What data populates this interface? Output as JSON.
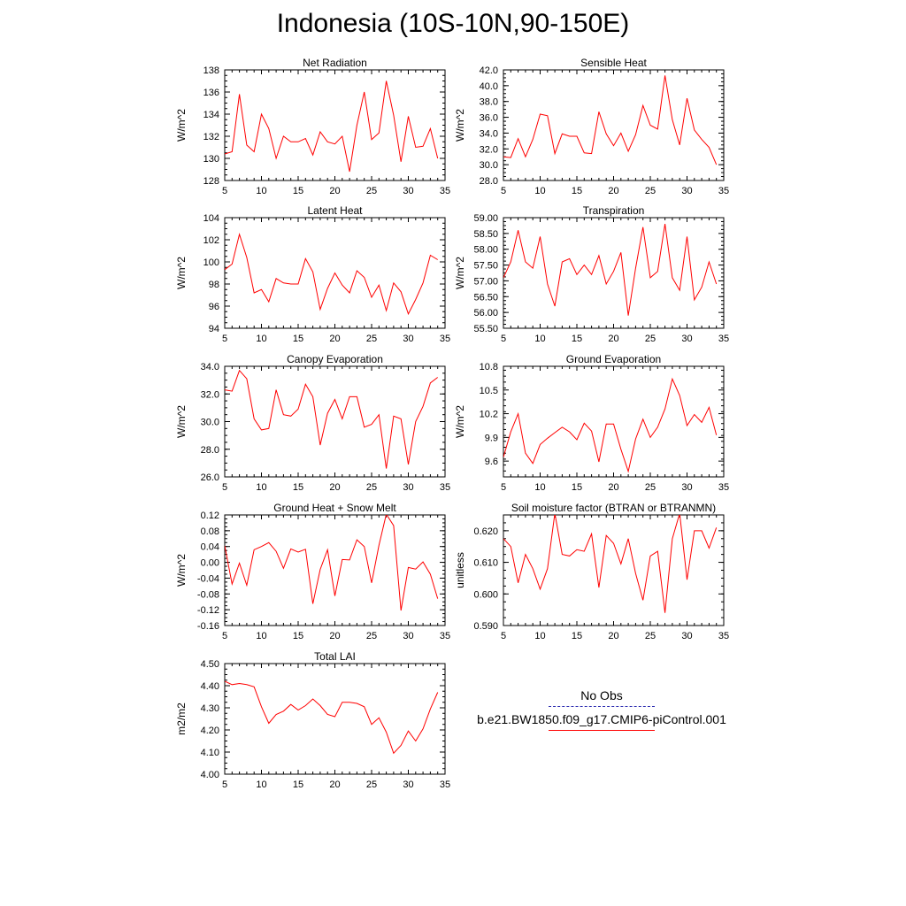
{
  "figure_title": "Indonesia (10S-10N,90-150E)",
  "legend": {
    "obs_label": "No Obs",
    "model_label": "b.e21.BW1850.f09_g17.CMIP6-piControl.001",
    "obs_color": "#2b2bb0",
    "model_color": "#ff0000"
  },
  "chart_data": [
    {
      "type": "line",
      "title": "Net Radiation",
      "ylabel": "W/m^2",
      "xlim": [
        5,
        35
      ],
      "xticks": [
        "5",
        "10",
        "15",
        "20",
        "25",
        "30",
        "35"
      ],
      "ylim": [
        128,
        138
      ],
      "yticks": [
        "128",
        "130",
        "132",
        "134",
        "136",
        "138"
      ],
      "series": [
        {
          "name": "b.e21.BW1850.f09_g17.CMIP6-piControl.001",
          "x": [
            5,
            6,
            7,
            8,
            9,
            10,
            11,
            12,
            13,
            14,
            15,
            16,
            17,
            18,
            19,
            20,
            21,
            22,
            23,
            24,
            25,
            26,
            27,
            28,
            29,
            30,
            31,
            32,
            33,
            34
          ],
          "values": [
            130.4,
            130.6,
            135.8,
            131.2,
            130.6,
            134.0,
            132.7,
            130.0,
            132.0,
            131.5,
            131.5,
            131.8,
            130.3,
            132.4,
            131.5,
            131.3,
            132.0,
            128.8,
            133.0,
            136.0,
            131.7,
            132.3,
            137.0,
            133.9,
            129.7,
            133.8,
            131.0,
            131.1,
            132.7,
            130.0
          ]
        }
      ]
    },
    {
      "type": "line",
      "title": "Sensible Heat",
      "ylabel": "W/m^2",
      "xlim": [
        5,
        35
      ],
      "xticks": [
        "5",
        "10",
        "15",
        "20",
        "25",
        "30",
        "35"
      ],
      "ylim": [
        28,
        42
      ],
      "yticks": [
        "28.0",
        "30.0",
        "32.0",
        "34.0",
        "36.0",
        "38.0",
        "40.0",
        "42.0"
      ],
      "series": [
        {
          "name": "b.e21.BW1850.f09_g17.CMIP6-piControl.001",
          "x": [
            5,
            6,
            7,
            8,
            9,
            10,
            11,
            12,
            13,
            14,
            15,
            16,
            17,
            18,
            19,
            20,
            21,
            22,
            23,
            24,
            25,
            26,
            27,
            28,
            29,
            30,
            31,
            32,
            33,
            34
          ],
          "values": [
            31.0,
            30.9,
            33.3,
            31.0,
            33.2,
            36.4,
            36.2,
            31.4,
            33.9,
            33.6,
            33.6,
            31.5,
            31.4,
            36.7,
            33.9,
            32.4,
            34.0,
            31.7,
            33.8,
            37.5,
            35.0,
            34.5,
            41.3,
            35.7,
            32.5,
            38.4,
            34.4,
            33.2,
            32.2,
            30.0
          ]
        }
      ]
    },
    {
      "type": "line",
      "title": "Latent Heat",
      "ylabel": "W/m^2",
      "xlim": [
        5,
        35
      ],
      "xticks": [
        "5",
        "10",
        "15",
        "20",
        "25",
        "30",
        "35"
      ],
      "ylim": [
        94,
        104
      ],
      "yticks": [
        "94",
        "96",
        "98",
        "100",
        "102",
        "104"
      ],
      "series": [
        {
          "name": "b.e21.BW1850.f09_g17.CMIP6-piControl.001",
          "x": [
            5,
            6,
            7,
            8,
            9,
            10,
            11,
            12,
            13,
            14,
            15,
            16,
            17,
            18,
            19,
            20,
            21,
            22,
            23,
            24,
            25,
            26,
            27,
            28,
            29,
            30,
            31,
            32,
            33,
            34
          ],
          "values": [
            99.3,
            99.8,
            102.5,
            100.4,
            97.2,
            97.5,
            96.4,
            98.5,
            98.1,
            98.0,
            98.0,
            100.3,
            99.1,
            95.7,
            97.6,
            99.0,
            97.9,
            97.2,
            99.2,
            98.6,
            96.8,
            97.9,
            95.6,
            98.1,
            97.3,
            95.3,
            96.6,
            98.1,
            100.6,
            100.2
          ]
        }
      ]
    },
    {
      "type": "line",
      "title": "Transpiration",
      "ylabel": "W/m^2",
      "xlim": [
        5,
        35
      ],
      "xticks": [
        "5",
        "10",
        "15",
        "20",
        "25",
        "30",
        "35"
      ],
      "ylim": [
        55.5,
        59.0
      ],
      "yticks": [
        "55.50",
        "56.00",
        "56.50",
        "57.00",
        "57.50",
        "58.00",
        "58.50",
        "59.00"
      ],
      "series": [
        {
          "name": "b.e21.BW1850.f09_g17.CMIP6-piControl.001",
          "x": [
            5,
            6,
            7,
            8,
            9,
            10,
            11,
            12,
            13,
            14,
            15,
            16,
            17,
            18,
            19,
            20,
            21,
            22,
            23,
            24,
            25,
            26,
            27,
            28,
            29,
            30,
            31,
            32,
            33,
            34
          ],
          "values": [
            57.1,
            57.6,
            58.6,
            57.6,
            57.4,
            58.4,
            56.9,
            56.2,
            57.6,
            57.7,
            57.2,
            57.5,
            57.2,
            57.8,
            56.9,
            57.3,
            57.9,
            55.9,
            57.4,
            58.7,
            57.1,
            57.3,
            58.8,
            57.1,
            56.7,
            58.4,
            56.4,
            56.8,
            57.6,
            56.9
          ]
        }
      ]
    },
    {
      "type": "line",
      "title": "Canopy Evaporation",
      "ylabel": "W/m^2",
      "xlim": [
        5,
        35
      ],
      "xticks": [
        "5",
        "10",
        "15",
        "20",
        "25",
        "30",
        "35"
      ],
      "ylim": [
        26,
        34
      ],
      "yticks": [
        "26.0",
        "28.0",
        "30.0",
        "32.0",
        "34.0"
      ],
      "series": [
        {
          "name": "b.e21.BW1850.f09_g17.CMIP6-piControl.001",
          "x": [
            5,
            6,
            7,
            8,
            9,
            10,
            11,
            12,
            13,
            14,
            15,
            16,
            17,
            18,
            19,
            20,
            21,
            22,
            23,
            24,
            25,
            26,
            27,
            28,
            29,
            30,
            31,
            32,
            33,
            34
          ],
          "values": [
            32.3,
            32.2,
            33.7,
            33.1,
            30.2,
            29.4,
            29.5,
            32.3,
            30.5,
            30.4,
            30.9,
            32.7,
            31.8,
            28.3,
            30.6,
            31.6,
            30.2,
            31.8,
            31.8,
            29.6,
            29.8,
            30.5,
            26.6,
            30.4,
            30.2,
            26.9,
            30.0,
            31.1,
            32.8,
            33.2
          ]
        }
      ]
    },
    {
      "type": "line",
      "title": "Ground Evaporation",
      "ylabel": "W/m^2",
      "xlim": [
        5,
        35
      ],
      "xticks": [
        "5",
        "10",
        "15",
        "20",
        "25",
        "30",
        "35"
      ],
      "ylim": [
        9.4,
        10.8
      ],
      "yticks": [
        "9.6",
        "9.9",
        "10.2",
        "10.5",
        "10.8"
      ],
      "series": [
        {
          "name": "b.e21.BW1850.f09_g17.CMIP6-piControl.001",
          "x": [
            5,
            6,
            7,
            8,
            9,
            10,
            11,
            12,
            13,
            14,
            15,
            16,
            17,
            18,
            19,
            20,
            21,
            22,
            23,
            24,
            25,
            26,
            27,
            28,
            29,
            30,
            31,
            32,
            33,
            34
          ],
          "values": [
            9.65,
            9.97,
            10.2,
            9.7,
            9.57,
            9.81,
            9.89,
            9.96,
            10.03,
            9.97,
            9.87,
            10.08,
            9.98,
            9.59,
            10.07,
            10.07,
            9.75,
            9.47,
            9.88,
            10.13,
            9.9,
            10.03,
            10.26,
            10.64,
            10.43,
            10.05,
            10.19,
            10.09,
            10.28,
            9.93
          ]
        }
      ]
    },
    {
      "type": "line",
      "title": "Ground Heat + Snow Melt",
      "ylabel": "W/m^2",
      "xlim": [
        5,
        35
      ],
      "xticks": [
        "5",
        "10",
        "15",
        "20",
        "25",
        "30",
        "35"
      ],
      "ylim": [
        -0.16,
        0.12
      ],
      "yticks": [
        "-0.16",
        "-0.12",
        "-0.08",
        "-0.04",
        "0.00",
        "0.04",
        "0.08",
        "0.12"
      ],
      "series": [
        {
          "name": "b.e21.BW1850.f09_g17.CMIP6-piControl.001",
          "x": [
            5,
            6,
            7,
            8,
            9,
            10,
            11,
            12,
            13,
            14,
            15,
            16,
            17,
            18,
            19,
            20,
            21,
            22,
            23,
            24,
            25,
            26,
            27,
            28,
            29,
            30,
            31,
            32,
            33,
            34
          ],
          "values": [
            0.042,
            -0.055,
            -0.002,
            -0.058,
            0.032,
            0.04,
            0.05,
            0.028,
            -0.015,
            0.034,
            0.026,
            0.033,
            -0.105,
            -0.018,
            0.032,
            -0.085,
            0.007,
            0.006,
            0.057,
            0.04,
            -0.052,
            0.043,
            0.122,
            0.093,
            -0.122,
            -0.013,
            -0.017,
            0.001,
            -0.03,
            -0.092
          ]
        }
      ]
    },
    {
      "type": "line",
      "title": "Soil moisture factor (BTRAN or BTRANMN)",
      "ylabel": "unitless",
      "xlim": [
        5,
        35
      ],
      "xticks": [
        "5",
        "10",
        "15",
        "20",
        "25",
        "30",
        "35"
      ],
      "ylim": [
        0.59,
        0.625
      ],
      "yticks": [
        "0.590",
        "0.600",
        "0.610",
        "0.620"
      ],
      "series": [
        {
          "name": "b.e21.BW1850.f09_g17.CMIP6-piControl.001",
          "x": [
            5,
            6,
            7,
            8,
            9,
            10,
            11,
            12,
            13,
            14,
            15,
            16,
            17,
            18,
            19,
            20,
            21,
            22,
            23,
            24,
            25,
            26,
            27,
            28,
            29,
            30,
            31,
            32,
            33,
            34
          ],
          "values": [
            0.6175,
            0.615,
            0.6035,
            0.6125,
            0.608,
            0.6015,
            0.608,
            0.6255,
            0.6125,
            0.612,
            0.614,
            0.6135,
            0.619,
            0.602,
            0.6185,
            0.616,
            0.6095,
            0.6175,
            0.6065,
            0.598,
            0.612,
            0.6135,
            0.594,
            0.6175,
            0.6255,
            0.6045,
            0.62,
            0.62,
            0.6145,
            0.621
          ]
        }
      ]
    },
    {
      "type": "line",
      "title": "Total LAI",
      "ylabel": "m2/m2",
      "xlim": [
        5,
        35
      ],
      "xticks": [
        "5",
        "10",
        "15",
        "20",
        "25",
        "30",
        "35"
      ],
      "ylim": [
        4.0,
        4.5
      ],
      "yticks": [
        "4.00",
        "4.10",
        "4.20",
        "4.30",
        "4.40",
        "4.50"
      ],
      "series": [
        {
          "name": "b.e21.BW1850.f09_g17.CMIP6-piControl.001",
          "x": [
            5,
            6,
            7,
            8,
            9,
            10,
            11,
            12,
            13,
            14,
            15,
            16,
            17,
            18,
            19,
            20,
            21,
            22,
            23,
            24,
            25,
            26,
            27,
            28,
            29,
            30,
            31,
            32,
            33,
            34
          ],
          "values": [
            4.42,
            4.405,
            4.41,
            4.405,
            4.395,
            4.305,
            4.23,
            4.27,
            4.285,
            4.315,
            4.29,
            4.31,
            4.34,
            4.31,
            4.27,
            4.26,
            4.325,
            4.325,
            4.32,
            4.305,
            4.225,
            4.255,
            4.19,
            4.095,
            4.13,
            4.195,
            4.15,
            4.205,
            4.295,
            4.37
          ]
        }
      ]
    }
  ]
}
